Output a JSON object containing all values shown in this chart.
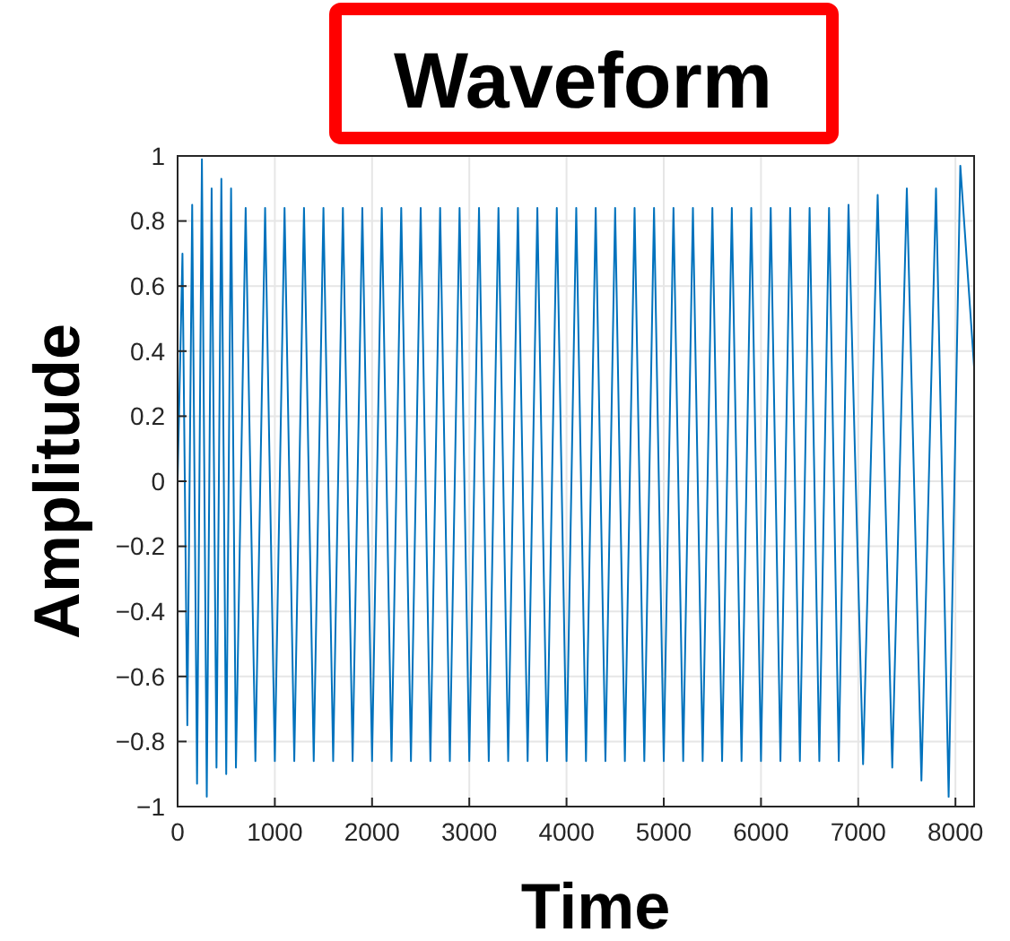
{
  "chart_data": {
    "type": "line",
    "title": "Waveform",
    "xlabel": "Time",
    "ylabel": "Amplitude",
    "x": [
      0,
      50,
      100,
      150,
      200,
      250,
      300,
      350,
      400,
      450,
      500,
      550,
      600,
      700,
      800,
      900,
      1000,
      1100,
      1200,
      1300,
      1400,
      1500,
      1600,
      1700,
      1800,
      1900,
      2000,
      2100,
      2200,
      2300,
      2400,
      2500,
      2600,
      2700,
      2800,
      2900,
      3000,
      3100,
      3200,
      3300,
      3400,
      3500,
      3600,
      3700,
      3800,
      3900,
      4000,
      4100,
      4200,
      4300,
      4400,
      4500,
      4600,
      4700,
      4800,
      4900,
      5000,
      5100,
      5200,
      5300,
      5400,
      5500,
      5600,
      5700,
      5800,
      5900,
      6000,
      6100,
      6200,
      6300,
      6400,
      6500,
      6600,
      6700,
      6800,
      6900,
      7050,
      7200,
      7350,
      7500,
      7650,
      7800,
      7930,
      8050,
      8192
    ],
    "series": [
      {
        "color": "#0072bd",
        "values": [
          0,
          0.7,
          -0.75,
          0.85,
          -0.93,
          0.99,
          -0.97,
          0.9,
          -0.88,
          0.93,
          -0.9,
          0.9,
          -0.88,
          0.84,
          -0.86,
          0.84,
          -0.86,
          0.84,
          -0.86,
          0.84,
          -0.86,
          0.84,
          -0.86,
          0.84,
          -0.86,
          0.84,
          -0.86,
          0.84,
          -0.86,
          0.84,
          -0.86,
          0.84,
          -0.86,
          0.84,
          -0.86,
          0.84,
          -0.86,
          0.84,
          -0.86,
          0.84,
          -0.86,
          0.84,
          -0.86,
          0.84,
          -0.86,
          0.84,
          -0.86,
          0.84,
          -0.86,
          0.84,
          -0.86,
          0.84,
          -0.86,
          0.84,
          -0.86,
          0.84,
          -0.86,
          0.84,
          -0.86,
          0.84,
          -0.86,
          0.84,
          -0.86,
          0.84,
          -0.86,
          0.84,
          -0.86,
          0.84,
          -0.86,
          0.84,
          -0.86,
          0.84,
          -0.86,
          0.84,
          -0.86,
          0.85,
          -0.87,
          0.88,
          -0.88,
          0.9,
          -0.92,
          0.9,
          -0.97,
          0.97,
          0.35
        ]
      }
    ],
    "xlim": [
      0,
      8192
    ],
    "xticks": [
      0,
      1000,
      2000,
      3000,
      4000,
      5000,
      6000,
      7000,
      8000
    ],
    "ylim": [
      -1,
      1
    ],
    "yticks": [
      -1,
      -0.8,
      -0.6,
      -0.4,
      -0.2,
      0,
      0.2,
      0.4,
      0.6,
      0.8,
      1
    ],
    "grid": true,
    "marker": "none",
    "line_style": "solid"
  }
}
